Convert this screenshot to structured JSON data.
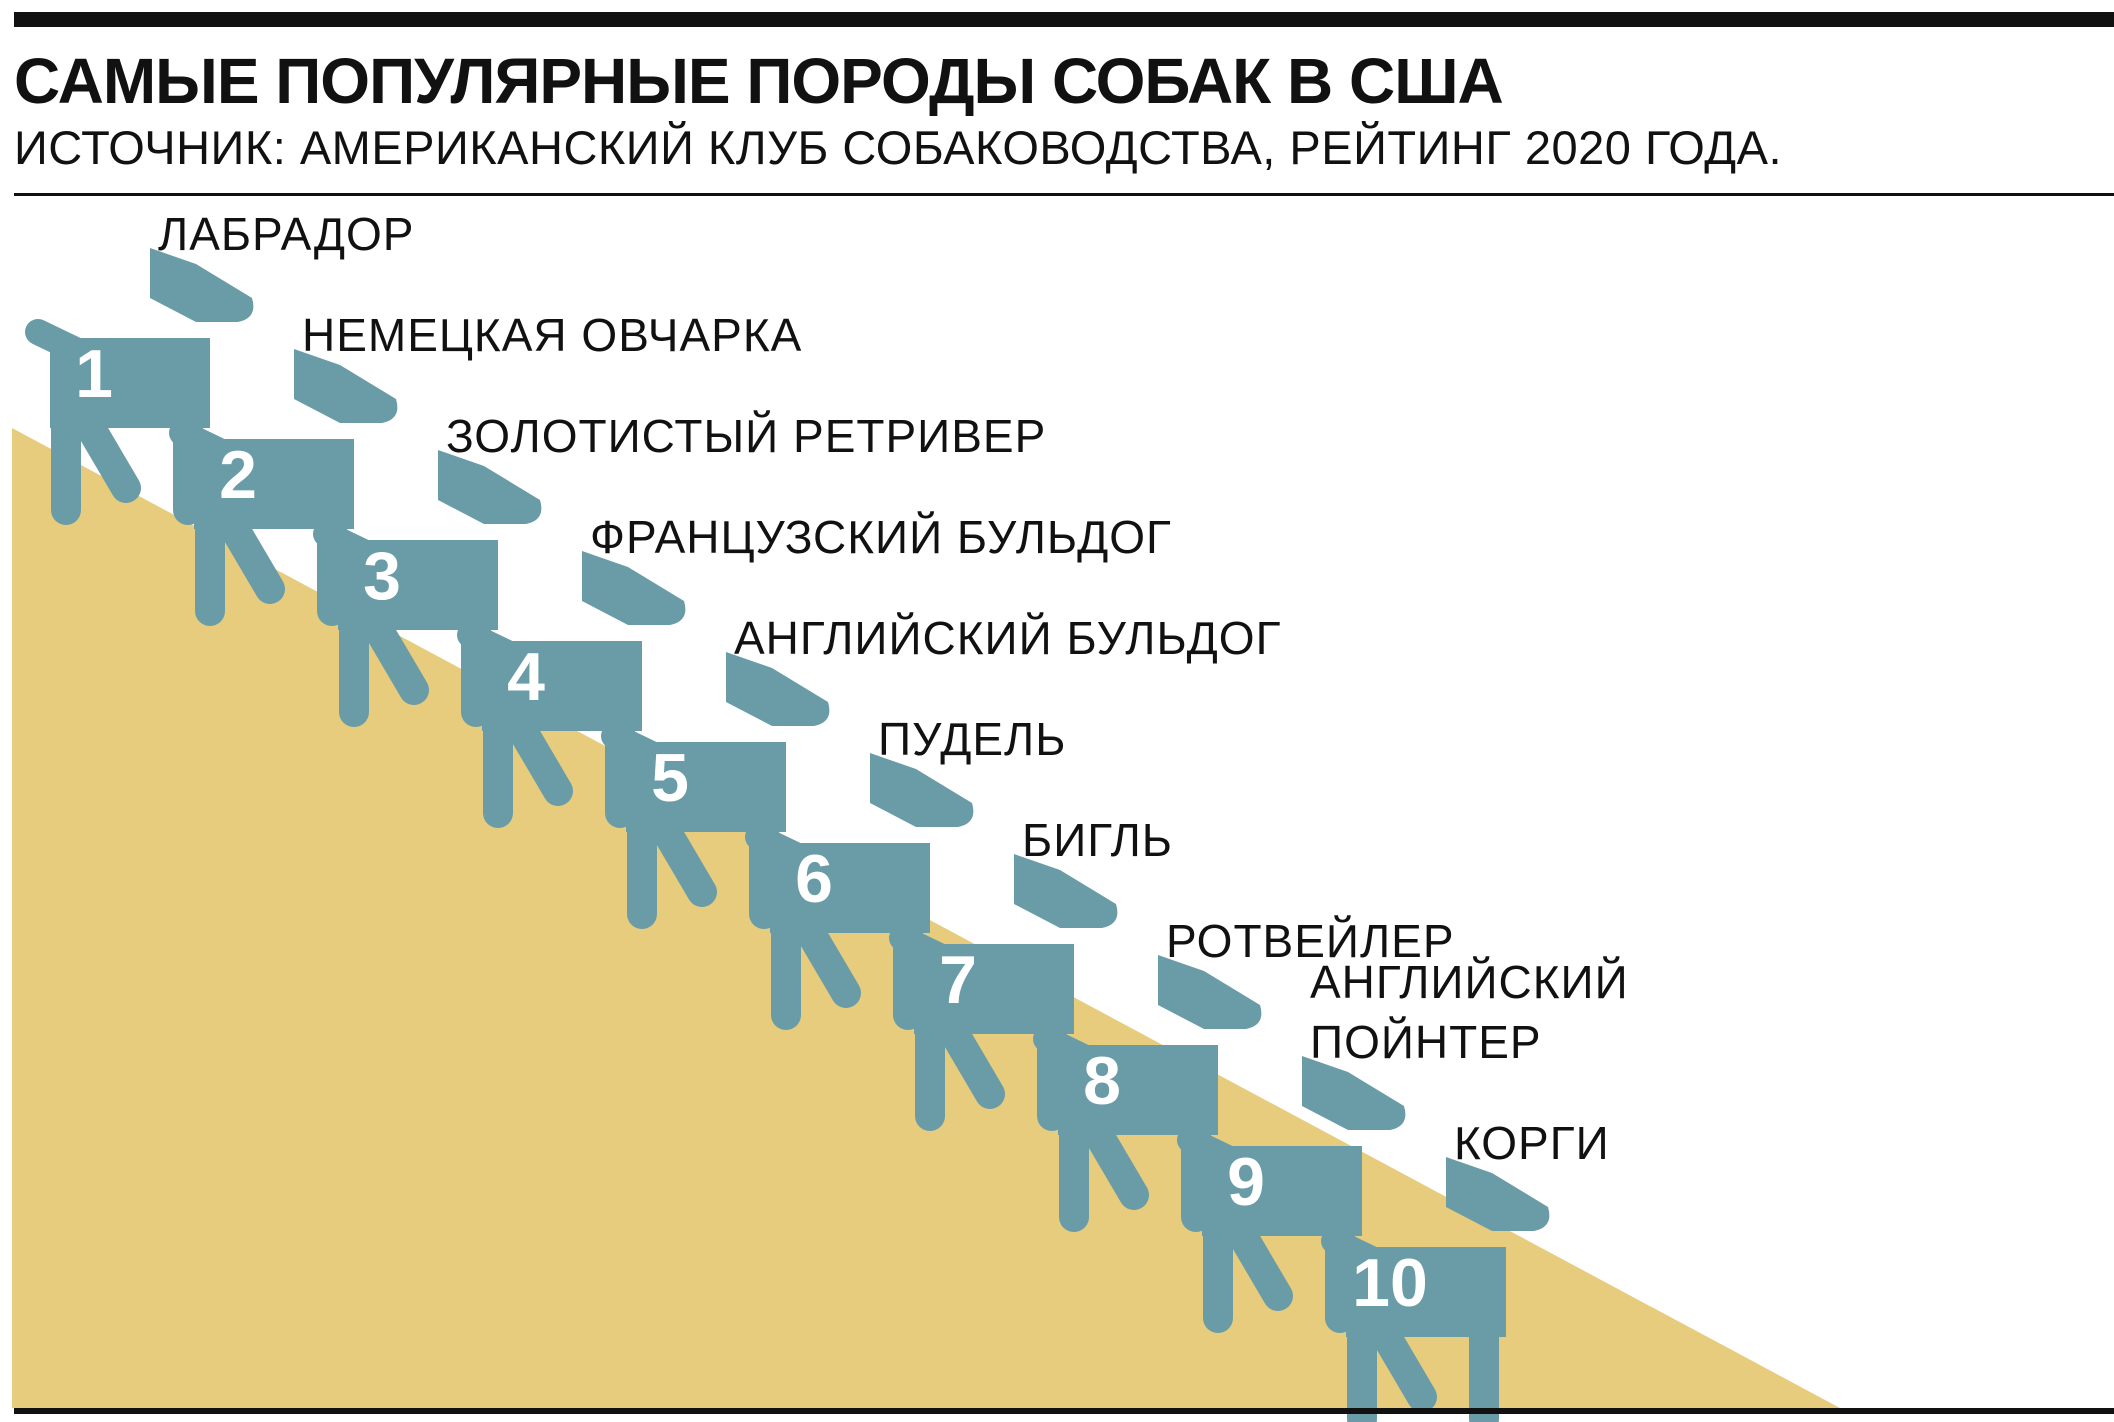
{
  "header": {
    "title": "САМЫЕ ПОПУЛЯРНЫЕ ПОРОДЫ СОБАК В США",
    "subtitle": "ИСТОЧНИК: АМЕРИКАНСКИЙ КЛУБ СОБАКОВОДСТВА, РЕЙТИНГ 2020 ГОДА."
  },
  "colors": {
    "slope": "#e6cc7c",
    "dog": "#6a9ca8",
    "text": "#111111",
    "number": "#ffffff"
  },
  "breeds": [
    {
      "rank": "1",
      "lines": [
        "ЛАБРАДОР"
      ]
    },
    {
      "rank": "2",
      "lines": [
        "НЕМЕЦКАЯ ОВЧАРКА"
      ]
    },
    {
      "rank": "3",
      "lines": [
        "ЗОЛОТИСТЫЙ РЕТРИВЕР"
      ]
    },
    {
      "rank": "4",
      "lines": [
        "ФРАНЦУЗСКИЙ БУЛЬДОГ"
      ]
    },
    {
      "rank": "5",
      "lines": [
        "АНГЛИЙСКИЙ БУЛЬДОГ"
      ]
    },
    {
      "rank": "6",
      "lines": [
        "ПУДЕЛЬ"
      ]
    },
    {
      "rank": "7",
      "lines": [
        "БИГЛЬ"
      ]
    },
    {
      "rank": "8",
      "lines": [
        "РОТВЕЙЛЕР"
      ]
    },
    {
      "rank": "9",
      "lines": [
        "АНГЛИЙСКИЙ",
        "ПОЙНТЕР"
      ]
    },
    {
      "rank": "10",
      "lines": [
        "КОРГИ"
      ]
    }
  ]
}
